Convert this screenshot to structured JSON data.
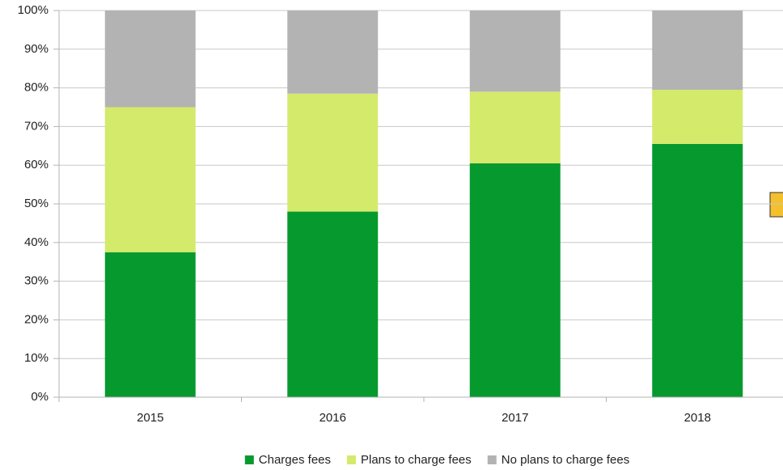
{
  "chart_data": {
    "type": "stacked_bar",
    "categories": [
      "2015",
      "2016",
      "2017",
      "2018"
    ],
    "series": [
      {
        "name": "Charges fees",
        "color": "#069a2e",
        "values": [
          37.5,
          48,
          60.5,
          65.5
        ]
      },
      {
        "name": "Plans to charge fees",
        "color": "#d4ea6b",
        "values": [
          37.5,
          30.5,
          18.5,
          14
        ]
      },
      {
        "name": "No plans to charge fees",
        "color": "#b3b3b3",
        "values": [
          25,
          21.5,
          21,
          20.5
        ]
      }
    ],
    "ylim": [
      0,
      100
    ],
    "yticks": [
      {
        "value": 0,
        "label": "0%"
      },
      {
        "value": 10,
        "label": "10%"
      },
      {
        "value": 20,
        "label": "20%"
      },
      {
        "value": 30,
        "label": "30%"
      },
      {
        "value": 40,
        "label": "40%"
      },
      {
        "value": 50,
        "label": "50%"
      },
      {
        "value": 60,
        "label": "60%"
      },
      {
        "value": 70,
        "label": "70%"
      },
      {
        "value": 80,
        "label": "80%"
      },
      {
        "value": 90,
        "label": "90%"
      },
      {
        "value": 100,
        "label": "100%"
      }
    ],
    "grid": true,
    "legend": "bottom"
  }
}
